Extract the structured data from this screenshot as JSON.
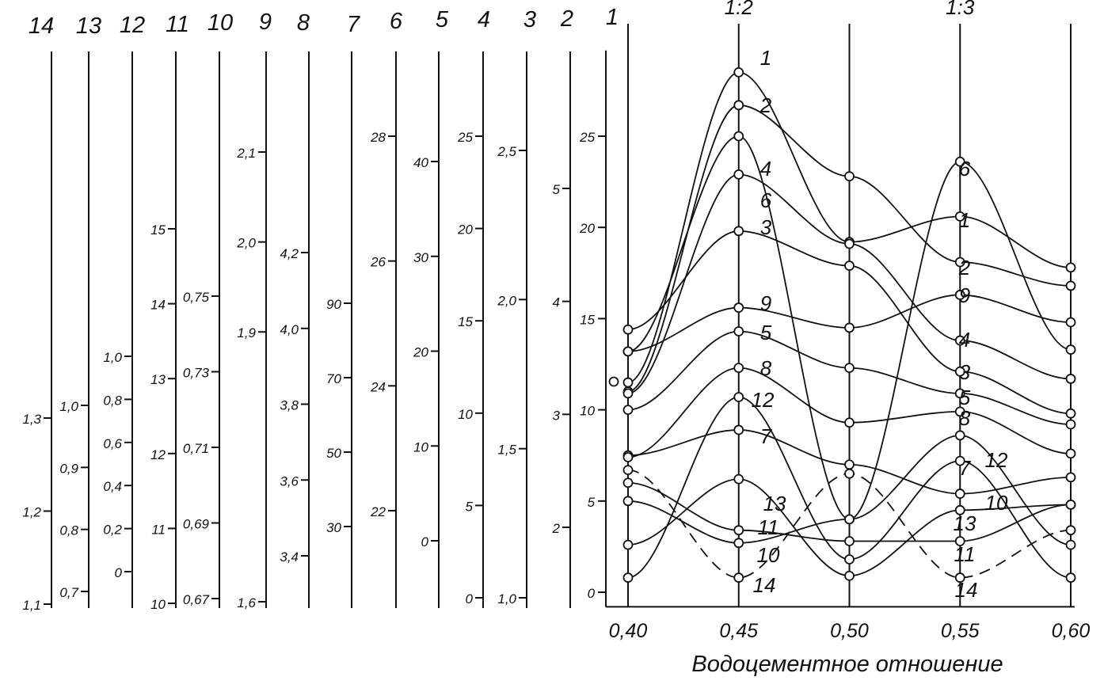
{
  "chart_data": {
    "type": "line",
    "xlabel": "Водоцементное отношение",
    "x_ticks": [
      "0,40",
      "0,45",
      "0,50",
      "0,55",
      "0,60"
    ],
    "xlim": [
      0.39,
      0.6
    ],
    "x_values": [
      0.4,
      0.45,
      0.5,
      0.55,
      0.6
    ],
    "ratio_labels": [
      {
        "text": "1:2",
        "x": 0.45
      },
      {
        "text": "1:3",
        "x": 0.55
      }
    ],
    "main_axis": {
      "ticks": [
        {
          "value": 0,
          "label": "0"
        },
        {
          "value": 5,
          "label": "5"
        },
        {
          "value": 10,
          "label": "10"
        },
        {
          "value": 15,
          "label": "15"
        },
        {
          "value": 20,
          "label": "20"
        },
        {
          "value": 25,
          "label": "25"
        }
      ],
      "ylim": [
        -0.8,
        29.7
      ]
    },
    "scales": [
      {
        "id": "14",
        "title": "14",
        "ylim": [
          1.1,
          1.3
        ],
        "ticks": [
          {
            "value": 1.3,
            "label": "1,3"
          },
          {
            "value": 1.2,
            "label": "1,2"
          },
          {
            "value": 1.1,
            "label": "1,1"
          }
        ]
      },
      {
        "id": "13",
        "title": "13",
        "ylim": [
          0.7,
          1.0
        ],
        "ticks": [
          {
            "value": 1.0,
            "label": "1,0"
          },
          {
            "value": 0.9,
            "label": "0,9"
          },
          {
            "value": 0.8,
            "label": "0,8"
          },
          {
            "value": 0.7,
            "label": "0,7"
          }
        ]
      },
      {
        "id": "12",
        "title": "12",
        "ylim": [
          0,
          1.0
        ],
        "ticks": [
          {
            "value": 1.0,
            "label": "1,0"
          },
          {
            "value": 0.8,
            "label": "0,8"
          },
          {
            "value": 0.6,
            "label": "0,6"
          },
          {
            "value": 0.4,
            "label": "0,4"
          },
          {
            "value": 0.2,
            "label": "0,2"
          },
          {
            "value": 0,
            "label": "0"
          }
        ]
      },
      {
        "id": "11",
        "title": "11",
        "ylim": [
          10,
          15
        ],
        "ticks": [
          {
            "value": 15,
            "label": "15"
          },
          {
            "value": 14,
            "label": "14"
          },
          {
            "value": 13,
            "label": "13"
          },
          {
            "value": 12,
            "label": "12"
          },
          {
            "value": 11,
            "label": "11"
          },
          {
            "value": 10,
            "label": "10"
          }
        ]
      },
      {
        "id": "10",
        "title": "10",
        "ylim": [
          0.67,
          0.75
        ],
        "ticks": [
          {
            "value": 0.75,
            "label": "0,75"
          },
          {
            "value": 0.73,
            "label": "0,73"
          },
          {
            "value": 0.71,
            "label": "0,71"
          },
          {
            "value": 0.69,
            "label": "0,69"
          },
          {
            "value": 0.67,
            "label": "0,67"
          }
        ]
      },
      {
        "id": "9",
        "title": "9",
        "ylim": [
          1.6,
          2.1
        ],
        "ticks": [
          {
            "value": 2.1,
            "label": "2,1"
          },
          {
            "value": 2.0,
            "label": "2,0"
          },
          {
            "value": 1.9,
            "label": "1,9"
          },
          {
            "value": 1.6,
            "label": "1,6"
          }
        ]
      },
      {
        "id": "8",
        "title": "8",
        "ylim": [
          3.4,
          4.2
        ],
        "ticks": [
          {
            "value": 4.2,
            "label": "4,2"
          },
          {
            "value": 4.0,
            "label": "4,0"
          },
          {
            "value": 3.8,
            "label": "3,8"
          },
          {
            "value": 3.6,
            "label": "3,6"
          },
          {
            "value": 3.4,
            "label": "3,4"
          }
        ]
      },
      {
        "id": "7",
        "title": "7",
        "ylim": [
          30,
          90
        ],
        "ticks": [
          {
            "value": 90,
            "label": "90"
          },
          {
            "value": 70,
            "label": "70"
          },
          {
            "value": 50,
            "label": "50"
          },
          {
            "value": 30,
            "label": "30"
          }
        ]
      },
      {
        "id": "6",
        "title": "6",
        "ylim": [
          22,
          28
        ],
        "ticks": [
          {
            "value": 28,
            "label": "28"
          },
          {
            "value": 26,
            "label": "26"
          },
          {
            "value": 24,
            "label": "24"
          },
          {
            "value": 22,
            "label": "22"
          }
        ]
      },
      {
        "id": "5",
        "title": "5",
        "ylim": [
          0,
          40
        ],
        "ticks": [
          {
            "value": 40,
            "label": "40"
          },
          {
            "value": 30,
            "label": "30"
          },
          {
            "value": 20,
            "label": "20"
          },
          {
            "value": 10,
            "label": "10"
          },
          {
            "value": 0,
            "label": "0"
          }
        ]
      },
      {
        "id": "4",
        "title": "4",
        "ylim": [
          0,
          25
        ],
        "ticks": [
          {
            "value": 25,
            "label": "25"
          },
          {
            "value": 20,
            "label": "20"
          },
          {
            "value": 15,
            "label": "15"
          },
          {
            "value": 10,
            "label": "10"
          },
          {
            "value": 5,
            "label": "5"
          },
          {
            "value": 0,
            "label": "0"
          }
        ]
      },
      {
        "id": "3",
        "title": "3",
        "ylim": [
          1.0,
          2.5
        ],
        "ticks": [
          {
            "value": 2.5,
            "label": "2,5"
          },
          {
            "value": 2.0,
            "label": "2,0"
          },
          {
            "value": 1.5,
            "label": "1,5"
          },
          {
            "value": 1.0,
            "label": "1,0"
          }
        ]
      },
      {
        "id": "2",
        "title": "2",
        "ylim": [
          2,
          5
        ],
        "ticks": [
          {
            "value": 5,
            "label": "5"
          },
          {
            "value": 4,
            "label": "4"
          },
          {
            "value": 3,
            "label": "3"
          },
          {
            "value": 2,
            "label": "2"
          }
        ]
      },
      {
        "id": "1",
        "title": "1",
        "ylim": [
          0,
          25
        ],
        "ticks": []
      }
    ],
    "series": [
      {
        "name": "1",
        "dashed": false,
        "values": [
          11.5,
          28.5,
          19.2,
          20.6,
          17.8
        ]
      },
      {
        "name": "2",
        "dashed": false,
        "values": [
          11.0,
          26.7,
          22.8,
          18.1,
          16.8
        ]
      },
      {
        "name": "3",
        "dashed": false,
        "values": [
          14.4,
          19.8,
          17.9,
          12.1,
          9.8
        ]
      },
      {
        "name": "4",
        "dashed": false,
        "values": [
          10.9,
          22.9,
          19.1,
          13.8,
          11.7
        ]
      },
      {
        "name": "5",
        "dashed": false,
        "values": [
          10.0,
          14.3,
          12.3,
          10.9,
          9.2
        ]
      },
      {
        "name": "6",
        "dashed": false,
        "values": [
          13.2,
          25.0,
          4.0,
          23.6,
          13.3
        ]
      },
      {
        "name": "7",
        "dashed": false,
        "values": [
          7.5,
          8.9,
          7.0,
          5.4,
          6.3
        ]
      },
      {
        "name": "8",
        "dashed": false,
        "values": [
          7.4,
          12.3,
          9.3,
          9.9,
          7.6
        ]
      },
      {
        "name": "9",
        "dashed": false,
        "values": [
          13.2,
          15.6,
          14.5,
          16.3,
          14.8
        ]
      },
      {
        "name": "10",
        "dashed": false,
        "values": [
          5.0,
          2.7,
          4.0,
          8.6,
          2.6
        ]
      },
      {
        "name": "11",
        "dashed": false,
        "values": [
          6.0,
          3.4,
          2.8,
          2.8,
          4.8
        ]
      },
      {
        "name": "12",
        "dashed": false,
        "values": [
          0.8,
          10.7,
          1.8,
          7.2,
          0.8
        ]
      },
      {
        "name": "13",
        "dashed": false,
        "values": [
          2.6,
          6.2,
          0.9,
          4.5,
          4.8
        ]
      },
      {
        "name": "14",
        "dashed": true,
        "values": [
          6.7,
          0.8,
          6.5,
          0.8,
          3.4
        ]
      }
    ]
  }
}
